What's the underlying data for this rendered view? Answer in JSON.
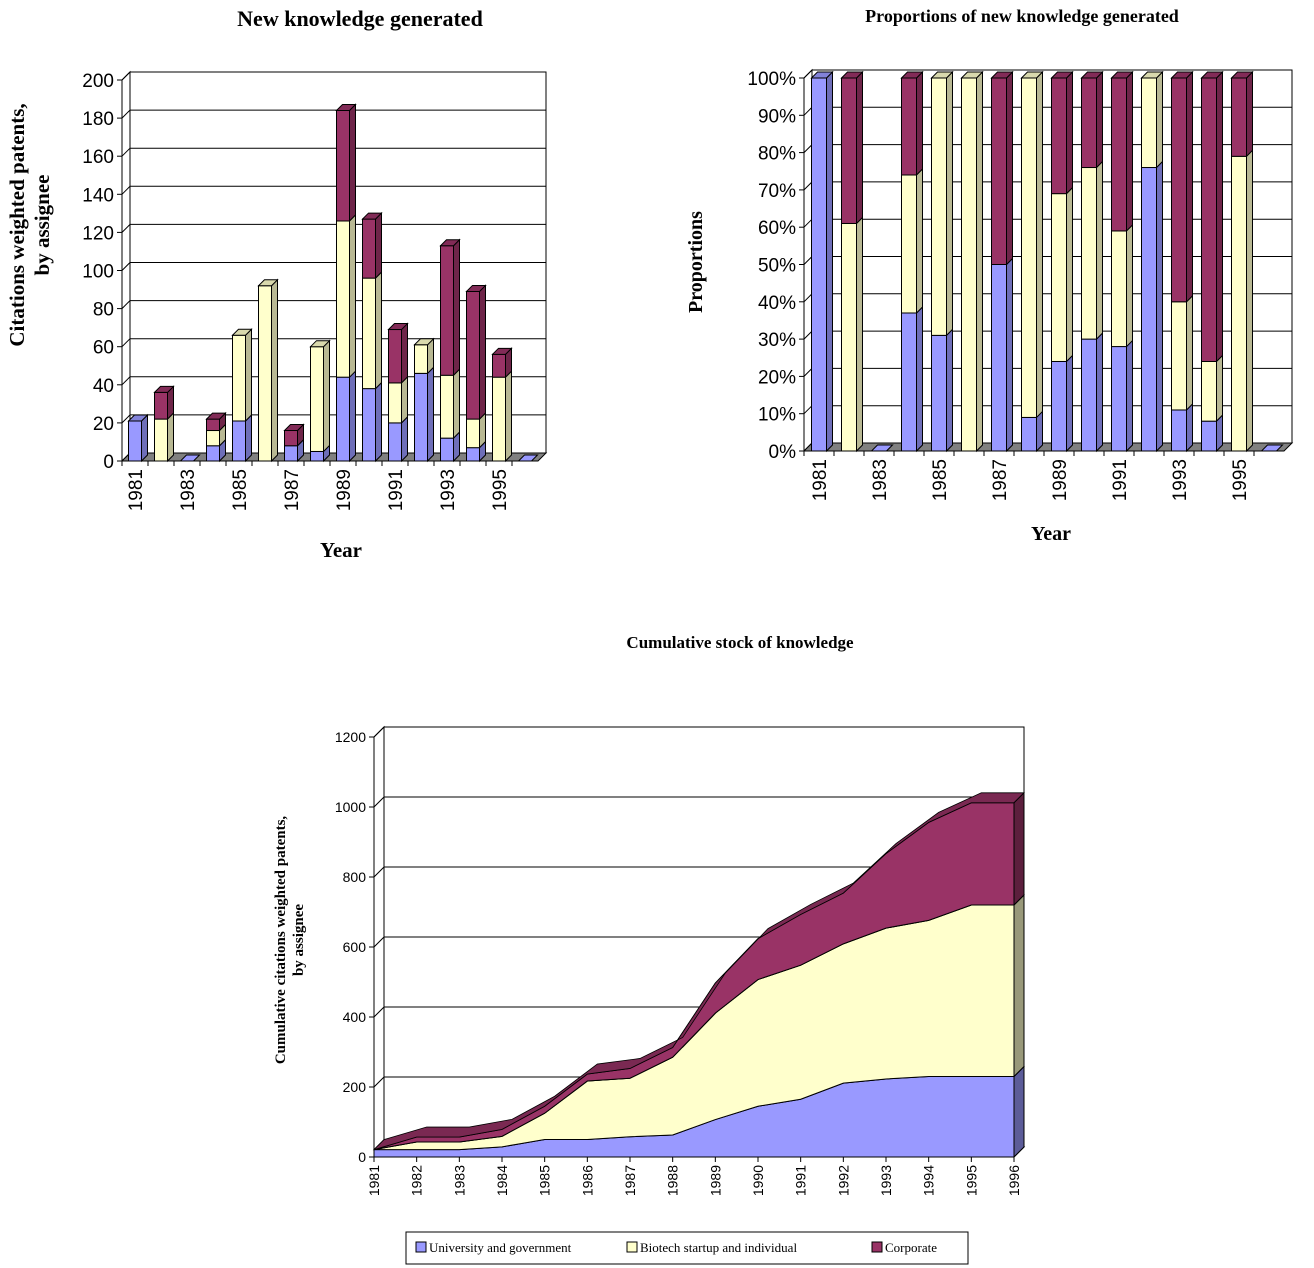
{
  "colors": {
    "university": "#9999ff",
    "biotech": "#ffffcc",
    "corporate": "#993366",
    "floor": "#808080"
  },
  "legend": [
    {
      "label": "University and government",
      "color": "#9999ff"
    },
    {
      "label": "Biotech startup and individual",
      "color": "#ffffcc"
    },
    {
      "label": "Corporate",
      "color": "#993366"
    }
  ],
  "chart_data": [
    {
      "type": "bar",
      "stacked": true,
      "title": "New knowledge generated",
      "xlabel": "Year",
      "ylabel": "Citations weighted patents, by assignee",
      "ylim": [
        0,
        200
      ],
      "yticks": [
        "0",
        "20",
        "40",
        "60",
        "80",
        "100",
        "120",
        "140",
        "160",
        "180",
        "200"
      ],
      "categories": [
        "1981",
        "1982",
        "1983",
        "1984",
        "1985",
        "1986",
        "1987",
        "1988",
        "1989",
        "1990",
        "1991",
        "1992",
        "1993",
        "1994",
        "1995",
        "1996"
      ],
      "xtick_labels": [
        "1981",
        "1983",
        "1985",
        "1987",
        "1989",
        "1991",
        "1993",
        "1995"
      ],
      "series": [
        {
          "name": "University and government",
          "values": [
            21,
            0,
            0,
            8,
            21,
            0,
            8,
            5,
            44,
            38,
            20,
            46,
            12,
            7,
            0,
            0
          ]
        },
        {
          "name": "Biotech startup and individual",
          "values": [
            0,
            22,
            0,
            8,
            45,
            92,
            0,
            55,
            82,
            58,
            21,
            15,
            33,
            15,
            44,
            0
          ]
        },
        {
          "name": "Corporate",
          "values": [
            0,
            14,
            0,
            6,
            0,
            0,
            8,
            0,
            58,
            31,
            28,
            0,
            68,
            67,
            12,
            0
          ]
        }
      ]
    },
    {
      "type": "bar",
      "stacked": true,
      "percent": true,
      "title": "Proportions of new knowledge generated",
      "xlabel": "Year",
      "ylabel": "Proportions",
      "ylim": [
        0,
        100
      ],
      "yticks": [
        "0%",
        "10%",
        "20%",
        "30%",
        "40%",
        "50%",
        "60%",
        "70%",
        "80%",
        "90%",
        "100%"
      ],
      "categories": [
        "1981",
        "1982",
        "1983",
        "1984",
        "1985",
        "1986",
        "1987",
        "1988",
        "1989",
        "1990",
        "1991",
        "1992",
        "1993",
        "1994",
        "1995",
        "1996"
      ],
      "xtick_labels": [
        "1981",
        "1983",
        "1985",
        "1987",
        "1989",
        "1991",
        "1993",
        "1995"
      ],
      "series": [
        {
          "name": "University and government",
          "values": [
            100,
            0,
            0,
            37,
            31,
            0,
            50,
            9,
            24,
            30,
            28,
            76,
            11,
            8,
            0,
            0
          ]
        },
        {
          "name": "Biotech startup and individual",
          "values": [
            0,
            61,
            0,
            37,
            69,
            100,
            0,
            91,
            45,
            46,
            31,
            24,
            29,
            16,
            79,
            0
          ]
        },
        {
          "name": "Corporate",
          "values": [
            0,
            39,
            0,
            26,
            0,
            0,
            50,
            0,
            31,
            24,
            41,
            0,
            60,
            76,
            21,
            0
          ]
        }
      ]
    },
    {
      "type": "area",
      "stacked": true,
      "title": "Cumulative stock of knowledge",
      "xlabel": "",
      "ylabel": "Cumulative citations weighted patents, by assignee",
      "ylim": [
        0,
        1200
      ],
      "yticks": [
        "0",
        "200",
        "400",
        "600",
        "800",
        "1000",
        "1200"
      ],
      "categories": [
        "1981",
        "1982",
        "1983",
        "1984",
        "1985",
        "1986",
        "1987",
        "1988",
        "1989",
        "1990",
        "1991",
        "1992",
        "1993",
        "1994",
        "1995",
        "1996"
      ],
      "xtick_labels": [
        "1981",
        "1982",
        "1983",
        "1984",
        "1985",
        "1986",
        "1987",
        "1988",
        "1989",
        "1990",
        "1991",
        "1992",
        "1993",
        "1994",
        "1995",
        "1996"
      ],
      "series": [
        {
          "name": "University and government",
          "values": [
            21,
            21,
            21,
            29,
            50,
            50,
            58,
            63,
            107,
            145,
            165,
            211,
            223,
            230,
            230,
            230
          ]
        },
        {
          "name": "Biotech startup and individual",
          "values": [
            0,
            22,
            22,
            30,
            75,
            167,
            167,
            222,
            304,
            362,
            383,
            398,
            431,
            446,
            490,
            490
          ]
        },
        {
          "name": "Corporate",
          "values": [
            0,
            14,
            14,
            20,
            20,
            20,
            28,
            28,
            86,
            117,
            145,
            145,
            213,
            280,
            292,
            292
          ]
        }
      ]
    }
  ]
}
